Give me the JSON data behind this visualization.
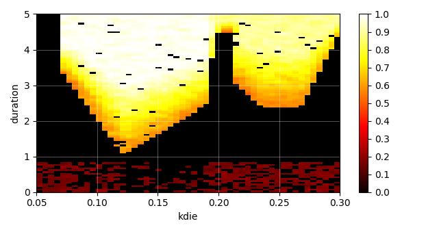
{
  "xlabel": "kdie",
  "ylabel": "duration",
  "xlim": [
    0.05,
    0.3
  ],
  "ylim": [
    0.0,
    5.0
  ],
  "xticks": [
    0.05,
    0.1,
    0.15,
    0.2,
    0.25,
    0.3
  ],
  "yticks": [
    0,
    1,
    2,
    3,
    4,
    5
  ],
  "colormap": "hot",
  "vmin": 0.0,
  "vmax": 1.0,
  "cbar_ticks": [
    0,
    0.1,
    0.2,
    0.3,
    0.4,
    0.5,
    0.6,
    0.7,
    0.8,
    0.9,
    1.0
  ],
  "nx": 51,
  "ny": 101,
  "kdie_min": 0.05,
  "kdie_max": 0.3,
  "dur_min": 0.0,
  "dur_max": 5.0,
  "figsize": [
    6.22,
    3.39
  ],
  "dpi": 100
}
